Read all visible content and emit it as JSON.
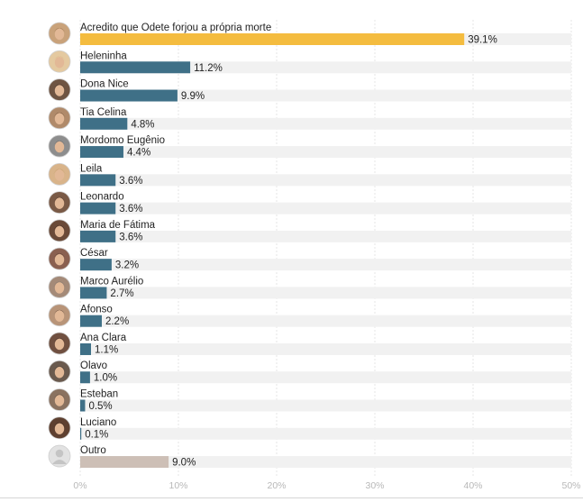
{
  "chart_data": {
    "type": "bar",
    "orientation": "horizontal",
    "categories": [
      "Acredito que Odete forjou a própria morte",
      "Heleninha",
      "Dona Nice",
      "Tia Celina",
      "Mordomo Eugênio",
      "Leila",
      "Leonardo",
      "Maria de Fátima",
      "César",
      "Marco Aurélio",
      "Afonso",
      "Ana Clara",
      "Olavo",
      "Esteban",
      "Luciano",
      "Outro"
    ],
    "values": [
      39.1,
      11.2,
      9.9,
      4.8,
      4.4,
      3.6,
      3.6,
      3.6,
      3.2,
      2.7,
      2.2,
      1.1,
      1.0,
      0.5,
      0.1,
      9.0
    ],
    "value_labels": [
      "39.1%",
      "11.2%",
      "9.9%",
      "4.8%",
      "4.4%",
      "3.6%",
      "3.6%",
      "3.6%",
      "3.2%",
      "2.7%",
      "2.2%",
      "1.1%",
      "1.0%",
      "0.5%",
      "0.1%",
      "9.0%"
    ],
    "icons": [
      "avatar-odete-icon",
      "avatar-heleninha-icon",
      "avatar-dona-nice-icon",
      "avatar-tia-celina-icon",
      "avatar-mordomo-eugenio-icon",
      "avatar-leila-icon",
      "avatar-leonardo-icon",
      "avatar-maria-de-fatima-icon",
      "avatar-cesar-icon",
      "avatar-marco-aurelio-icon",
      "avatar-afonso-icon",
      "avatar-ana-clara-icon",
      "avatar-olavo-icon",
      "avatar-esteban-icon",
      "avatar-luciano-icon",
      "avatar-placeholder-icon"
    ],
    "xlim": [
      0,
      50
    ],
    "x_ticks": [
      "0%",
      "10%",
      "20%",
      "30%",
      "40%",
      "50%"
    ],
    "grid": true,
    "title": "",
    "xlabel": "",
    "ylabel": "",
    "colors": {
      "highlight": "#f4bc3f",
      "default": "#3f7087",
      "other": "#cdbfb6",
      "track": "#f1f1f1",
      "grid": "#e6e6e6"
    }
  }
}
